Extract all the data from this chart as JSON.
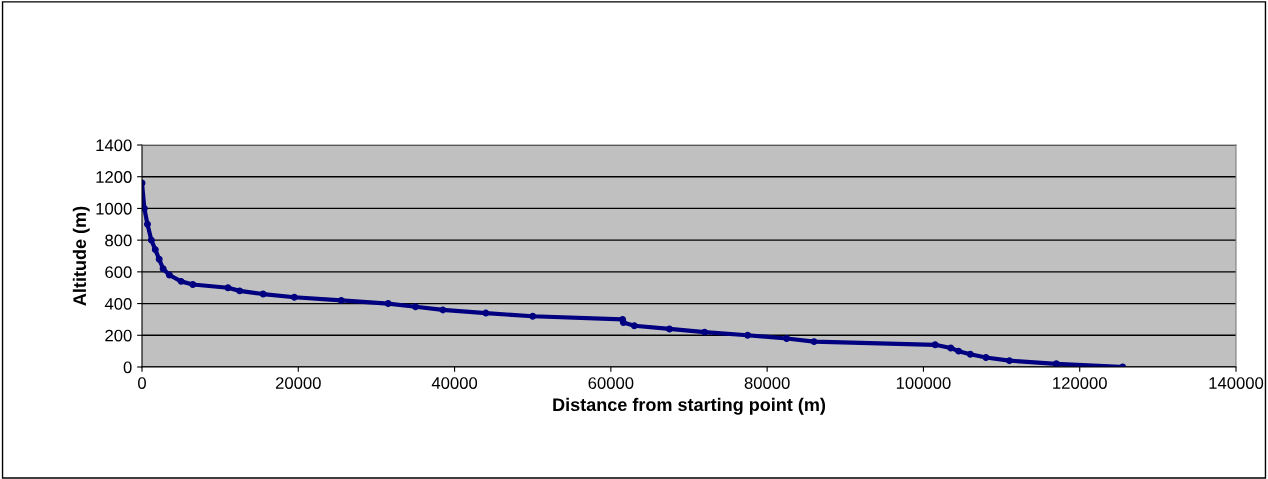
{
  "chart_data": {
    "type": "line",
    "xlabel": "Distance from starting point (m)",
    "ylabel": "Altitude (m)",
    "x": [
      0,
      300,
      700,
      1200,
      1700,
      2200,
      2700,
      3500,
      5000,
      6500,
      11000,
      12500,
      15500,
      19500,
      25500,
      31500,
      35000,
      38500,
      44000,
      50000,
      61500,
      61600,
      63000,
      67500,
      72000,
      77500,
      82500,
      86000,
      101500,
      103500,
      104500,
      106000,
      108000,
      111000,
      117000,
      125500
    ],
    "series": [
      {
        "color": "#000080",
        "values": [
          1160,
          1000,
          900,
          800,
          740,
          680,
          620,
          580,
          540,
          520,
          500,
          480,
          460,
          440,
          420,
          400,
          380,
          360,
          340,
          320,
          300,
          280,
          260,
          240,
          220,
          200,
          180,
          160,
          140,
          120,
          100,
          80,
          60,
          40,
          20,
          0
        ]
      }
    ],
    "xlim": [
      0,
      140000
    ],
    "xticks": [
      0,
      20000,
      40000,
      60000,
      80000,
      100000,
      120000,
      140000
    ],
    "ylim": [
      0,
      1400
    ],
    "yticks": [
      0,
      200,
      400,
      600,
      800,
      1000,
      1200,
      1400
    ],
    "grid": "y",
    "marker": "circle",
    "line_style": "solid",
    "legend": false
  }
}
